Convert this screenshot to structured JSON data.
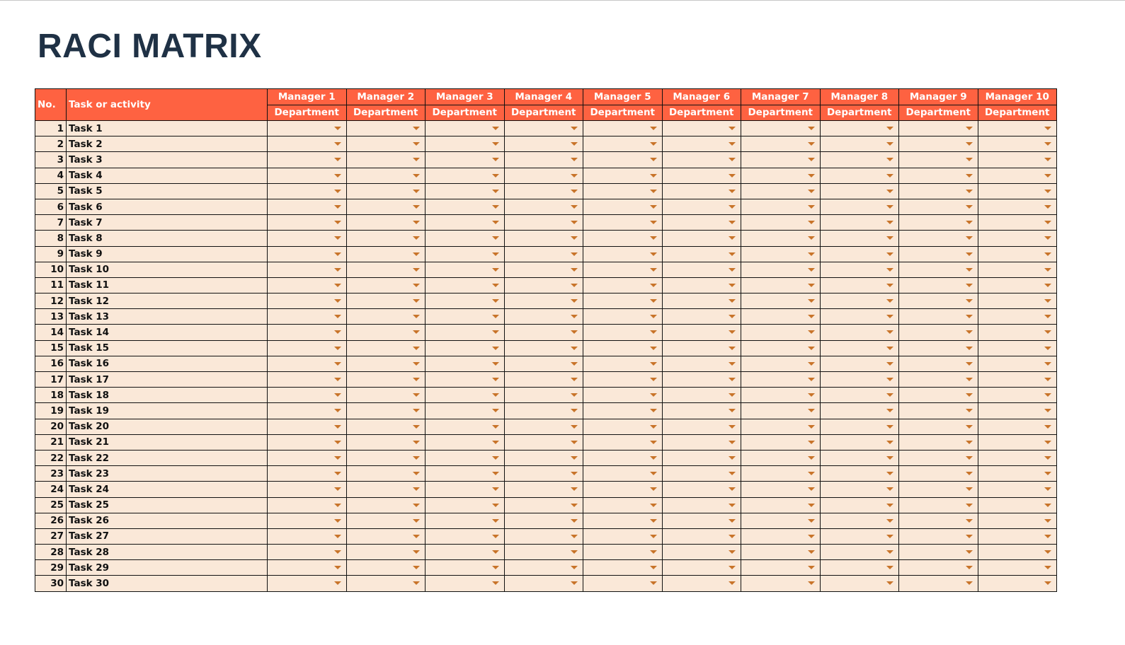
{
  "title": "RACI MATRIX",
  "header": {
    "no_label": "No.",
    "task_label": "Task or activity",
    "managers": [
      {
        "name": "Manager 1",
        "department": "Department"
      },
      {
        "name": "Manager 2",
        "department": "Department"
      },
      {
        "name": "Manager 3",
        "department": "Department"
      },
      {
        "name": "Manager 4",
        "department": "Department"
      },
      {
        "name": "Manager 5",
        "department": "Department"
      },
      {
        "name": "Manager 6",
        "department": "Department"
      },
      {
        "name": "Manager 7",
        "department": "Department"
      },
      {
        "name": "Manager 8",
        "department": "Department"
      },
      {
        "name": "Manager 9",
        "department": "Department"
      },
      {
        "name": "Manager 10",
        "department": "Department"
      }
    ]
  },
  "rows": [
    {
      "no": "1",
      "task": "Task 1"
    },
    {
      "no": "2",
      "task": "Task 2"
    },
    {
      "no": "3",
      "task": "Task 3"
    },
    {
      "no": "4",
      "task": "Task 4"
    },
    {
      "no": "5",
      "task": "Task 5"
    },
    {
      "no": "6",
      "task": "Task 6"
    },
    {
      "no": "7",
      "task": "Task 7"
    },
    {
      "no": "8",
      "task": "Task 8"
    },
    {
      "no": "9",
      "task": "Task 9"
    },
    {
      "no": "10",
      "task": "Task 10"
    },
    {
      "no": "11",
      "task": "Task 11"
    },
    {
      "no": "12",
      "task": "Task 12"
    },
    {
      "no": "13",
      "task": "Task 13"
    },
    {
      "no": "14",
      "task": "Task 14"
    },
    {
      "no": "15",
      "task": "Task 15"
    },
    {
      "no": "16",
      "task": "Task 16"
    },
    {
      "no": "17",
      "task": "Task 17"
    },
    {
      "no": "18",
      "task": "Task 18"
    },
    {
      "no": "19",
      "task": "Task 19"
    },
    {
      "no": "20",
      "task": "Task 20"
    },
    {
      "no": "21",
      "task": "Task 21"
    },
    {
      "no": "22",
      "task": "Task 22"
    },
    {
      "no": "23",
      "task": "Task 23"
    },
    {
      "no": "24",
      "task": "Task 24"
    },
    {
      "no": "25",
      "task": "Task 25"
    },
    {
      "no": "26",
      "task": "Task 26"
    },
    {
      "no": "27",
      "task": "Task 27"
    },
    {
      "no": "28",
      "task": "Task 28"
    },
    {
      "no": "29",
      "task": "Task 29"
    },
    {
      "no": "30",
      "task": "Task 30"
    }
  ],
  "colors": {
    "header": "#fe6241",
    "cell": "#fae8d8",
    "dropdown_arrow": "#c8742a",
    "title": "#1f3145"
  },
  "icons": {
    "dropdown": "dropdown-arrow-icon"
  }
}
